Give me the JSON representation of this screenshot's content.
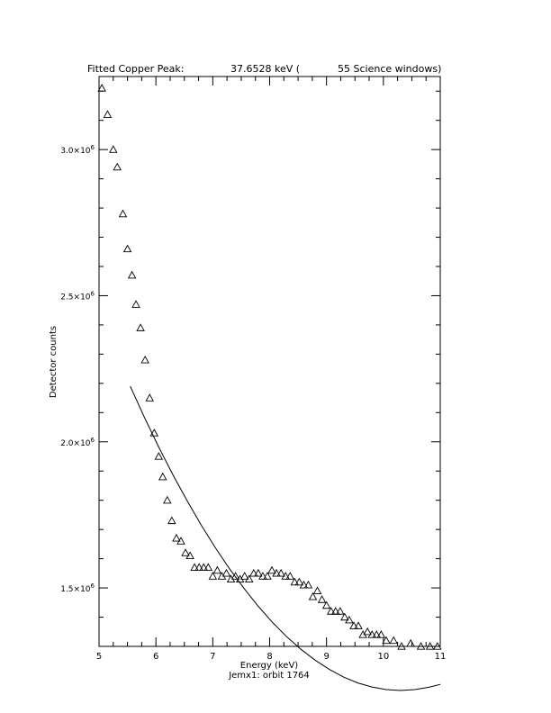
{
  "chart_data": {
    "type": "scatter",
    "title_parts": {
      "label": "Fitted Copper Peak:",
      "value": "37.6528 keV (",
      "windows": "55 Science windows)"
    },
    "xlabel": "Energy (keV)",
    "ylabel": "Detector counts",
    "footer": "Jemx1: orbit 1764",
    "xlim": [
      5,
      11
    ],
    "ylim": [
      1300000,
      3250000
    ],
    "x_ticks": [
      5,
      6,
      7,
      8,
      9,
      10,
      11
    ],
    "x_tick_labels": [
      "5",
      "6",
      "7",
      "8",
      "9",
      "10",
      "11"
    ],
    "y_ticks": [
      1500000,
      2000000,
      2500000,
      3000000
    ],
    "y_tick_mantissas": [
      "1.5×10",
      "2.0×10",
      "2.5×10",
      "3.0×10"
    ],
    "y_tick_exponent": "6",
    "grid": false,
    "series": [
      {
        "marker": "triangle",
        "x": [
          5.05,
          5.15,
          5.25,
          5.32,
          5.42,
          5.5,
          5.58,
          5.65,
          5.73,
          5.81,
          5.89,
          5.97,
          6.05,
          6.12,
          6.2,
          6.28,
          6.36,
          6.44,
          6.52,
          6.6,
          6.68,
          6.76,
          6.84,
          6.92,
          7.0,
          7.08,
          7.16,
          7.24,
          7.32,
          7.4,
          7.48,
          7.56,
          7.64,
          7.72,
          7.8,
          7.88,
          7.96,
          8.04,
          8.12,
          8.2,
          8.28,
          8.36,
          8.44,
          8.52,
          8.6,
          8.68,
          8.76,
          8.84,
          8.92,
          9.0,
          9.08,
          9.16,
          9.24,
          9.32,
          9.4,
          9.48,
          9.56,
          9.64,
          9.72,
          9.8,
          9.88,
          9.96,
          10.05,
          10.18,
          10.32,
          10.48,
          10.66,
          10.82,
          10.95
        ],
        "y": [
          3210000,
          3120000,
          3000000,
          2940000,
          2780000,
          2660000,
          2570000,
          2470000,
          2390000,
          2280000,
          2150000,
          2030000,
          1950000,
          1880000,
          1800000,
          1730000,
          1670000,
          1660000,
          1620000,
          1610000,
          1570000,
          1570000,
          1570000,
          1570000,
          1540000,
          1560000,
          1540000,
          1550000,
          1530000,
          1540000,
          1530000,
          1540000,
          1530000,
          1550000,
          1550000,
          1540000,
          1540000,
          1560000,
          1550000,
          1550000,
          1540000,
          1540000,
          1520000,
          1520000,
          1510000,
          1510000,
          1470000,
          1490000,
          1460000,
          1440000,
          1420000,
          1420000,
          1420000,
          1400000,
          1390000,
          1370000,
          1370000,
          1340000,
          1350000,
          1340000,
          1340000,
          1340000,
          1320000,
          1320000,
          1300000,
          1310000,
          1300000,
          1300000,
          1300000
        ]
      },
      {
        "type": "line",
        "fit_x": [
          5.55,
          5.8,
          6.05,
          6.3,
          6.55,
          6.8,
          7.05,
          7.3,
          7.55,
          7.8,
          8.05,
          8.3,
          8.55,
          8.8,
          9.05,
          9.3,
          9.55,
          9.8,
          10.05,
          10.3,
          10.55,
          10.8,
          11.0
        ],
        "fit_y": [
          2190000,
          2083000,
          1982000,
          1887000,
          1798000,
          1714000,
          1636000,
          1564000,
          1498000,
          1437000,
          1382000,
          1333000,
          1290000,
          1253000,
          1221000,
          1195000,
          1175000,
          1161000,
          1152000,
          1149000,
          1152000,
          1160000,
          1170000
        ]
      }
    ]
  }
}
